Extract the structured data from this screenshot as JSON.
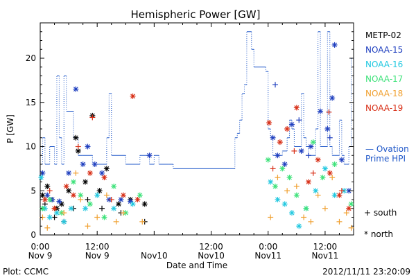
{
  "chart_data": {
    "type": "scatter",
    "title": "Hemispheric Power [GW]",
    "xlabel": "Date and Time",
    "ylabel": "P [GW]",
    "xlim": [
      0,
      66
    ],
    "ylim": [
      0,
      24
    ],
    "grid": false,
    "x_unit": "hours",
    "x_ticks": [
      {
        "x": 0,
        "time": "0:00",
        "date": "Nov 9"
      },
      {
        "x": 12,
        "time": "12:00",
        "date": "Nov 9"
      },
      {
        "x": 24,
        "time": "",
        "date": "Nov10"
      },
      {
        "x": 36,
        "time": "12:00",
        "date": "Nov10"
      },
      {
        "x": 48,
        "time": "0:00",
        "date": "Nov11"
      },
      {
        "x": 60,
        "time": "12:00",
        "date": "Nov11"
      }
    ],
    "y_ticks": [
      0,
      5,
      10,
      15,
      20
    ],
    "legend": {
      "placement": "right",
      "entries": [
        {
          "name": "METP-02",
          "color": "#000000"
        },
        {
          "name": "NOAA-15",
          "color": "#1f3fbf"
        },
        {
          "name": "NOAA-16",
          "color": "#22c8e0"
        },
        {
          "name": "NOAA-17",
          "color": "#3ee27a"
        },
        {
          "name": "NOAA-18",
          "color": "#f0a030"
        },
        {
          "name": "NOAA-19",
          "color": "#d83018"
        }
      ],
      "ovation_label_line1": "— Ovation",
      "ovation_label_line2": "Prime HPI",
      "ovation_color": "#1f57c8",
      "marker_south_label": "+ south",
      "marker_north_label": "* north"
    },
    "ovation_series": [
      [
        0,
        8
      ],
      [
        0.5,
        11
      ],
      [
        1,
        8
      ],
      [
        2,
        10
      ],
      [
        3,
        8
      ],
      [
        3.5,
        18
      ],
      [
        4,
        11
      ],
      [
        4.5,
        8
      ],
      [
        5,
        18
      ],
      [
        5.5,
        14
      ],
      [
        7,
        11
      ],
      [
        8,
        9
      ],
      [
        9,
        9
      ],
      [
        10,
        9
      ],
      [
        11,
        8
      ],
      [
        13,
        8
      ],
      [
        14,
        11
      ],
      [
        14.5,
        16
      ],
      [
        15,
        9
      ],
      [
        17,
        9
      ],
      [
        18,
        8
      ],
      [
        21,
        9
      ],
      [
        23,
        8
      ],
      [
        24,
        9
      ],
      [
        25,
        8
      ],
      [
        27,
        8
      ],
      [
        28,
        7.5
      ],
      [
        40,
        7.5
      ],
      [
        41,
        11
      ],
      [
        41.5,
        11.5
      ],
      [
        42,
        13
      ],
      [
        42.5,
        16
      ],
      [
        43,
        17
      ],
      [
        43.5,
        23
      ],
      [
        44.5,
        21
      ],
      [
        45,
        19
      ],
      [
        47,
        19
      ],
      [
        47.5,
        18.5
      ],
      [
        48,
        12
      ],
      [
        48.5,
        11
      ],
      [
        49,
        9
      ],
      [
        51,
        9.5
      ],
      [
        52,
        11
      ],
      [
        52.5,
        13
      ],
      [
        53,
        12
      ],
      [
        53.5,
        10
      ],
      [
        55,
        16
      ],
      [
        55.5,
        11
      ],
      [
        56,
        10
      ],
      [
        56.5,
        9
      ],
      [
        58,
        12
      ],
      [
        58.5,
        23
      ],
      [
        59,
        10
      ],
      [
        60.5,
        23
      ],
      [
        61,
        10
      ],
      [
        61.5,
        9
      ],
      [
        62,
        9
      ],
      [
        63,
        13
      ],
      [
        63.5,
        9
      ],
      [
        64,
        8
      ],
      [
        64.5,
        8
      ],
      [
        65,
        10
      ],
      [
        65.5,
        20
      ],
      [
        66,
        20
      ]
    ],
    "points": [
      {
        "sat": "METP-02",
        "hem": "north",
        "x": 0.5,
        "y": 4.5
      },
      {
        "sat": "METP-02",
        "hem": "north",
        "x": 1.5,
        "y": 5.5
      },
      {
        "sat": "METP-02",
        "hem": "north",
        "x": 2.5,
        "y": 4
      },
      {
        "sat": "METP-02",
        "hem": "north",
        "x": 3.5,
        "y": 3
      },
      {
        "sat": "METP-02",
        "hem": "north",
        "x": 4.5,
        "y": 3.5
      },
      {
        "sat": "METP-02",
        "hem": "north",
        "x": 6,
        "y": 5
      },
      {
        "sat": "METP-02",
        "hem": "north",
        "x": 7.5,
        "y": 11
      },
      {
        "sat": "METP-02",
        "hem": "north",
        "x": 8,
        "y": 9.5
      },
      {
        "sat": "METP-02",
        "hem": "north",
        "x": 9.5,
        "y": 6
      },
      {
        "sat": "METP-02",
        "hem": "north",
        "x": 11,
        "y": 13.5
      },
      {
        "sat": "METP-02",
        "hem": "north",
        "x": 12.5,
        "y": 5
      },
      {
        "sat": "METP-02",
        "hem": "north",
        "x": 14,
        "y": 7.5
      },
      {
        "sat": "METP-02",
        "hem": "north",
        "x": 16.5,
        "y": 3.5
      },
      {
        "sat": "METP-02",
        "hem": "north",
        "x": 19,
        "y": 4
      },
      {
        "sat": "METP-02",
        "hem": "north",
        "x": 22,
        "y": 3.5
      },
      {
        "sat": "METP-02",
        "hem": "south",
        "x": 1,
        "y": 3.5
      },
      {
        "sat": "METP-02",
        "hem": "south",
        "x": 3,
        "y": 2
      },
      {
        "sat": "METP-02",
        "hem": "south",
        "x": 5,
        "y": 1.5
      },
      {
        "sat": "METP-02",
        "hem": "south",
        "x": 7,
        "y": 3
      },
      {
        "sat": "METP-02",
        "hem": "south",
        "x": 10,
        "y": 4
      },
      {
        "sat": "METP-02",
        "hem": "south",
        "x": 13,
        "y": 3
      },
      {
        "sat": "METP-02",
        "hem": "south",
        "x": 17,
        "y": 2.5
      },
      {
        "sat": "METP-02",
        "hem": "south",
        "x": 22,
        "y": 1.5
      },
      {
        "sat": "NOAA-15",
        "hem": "north",
        "x": 0.5,
        "y": 7
      },
      {
        "sat": "NOAA-15",
        "hem": "north",
        "x": 1.5,
        "y": 4.5
      },
      {
        "sat": "NOAA-15",
        "hem": "north",
        "x": 2.5,
        "y": 4
      },
      {
        "sat": "NOAA-15",
        "hem": "north",
        "x": 4,
        "y": 3.8
      },
      {
        "sat": "NOAA-15",
        "hem": "north",
        "x": 6,
        "y": 7
      },
      {
        "sat": "NOAA-15",
        "hem": "north",
        "x": 7.5,
        "y": 16.5
      },
      {
        "sat": "NOAA-15",
        "hem": "north",
        "x": 9,
        "y": 8
      },
      {
        "sat": "NOAA-15",
        "hem": "north",
        "x": 10,
        "y": 10
      },
      {
        "sat": "NOAA-15",
        "hem": "north",
        "x": 11.5,
        "y": 8
      },
      {
        "sat": "NOAA-15",
        "hem": "north",
        "x": 13,
        "y": 7
      },
      {
        "sat": "NOAA-15",
        "hem": "north",
        "x": 14.5,
        "y": 4
      },
      {
        "sat": "NOAA-15",
        "hem": "north",
        "x": 17,
        "y": 4
      },
      {
        "sat": "NOAA-15",
        "hem": "north",
        "x": 19,
        "y": 3.8
      },
      {
        "sat": "NOAA-15",
        "hem": "north",
        "x": 23,
        "y": 9
      },
      {
        "sat": "NOAA-15",
        "hem": "north",
        "x": 49,
        "y": 11
      },
      {
        "sat": "NOAA-15",
        "hem": "north",
        "x": 50,
        "y": 9
      },
      {
        "sat": "NOAA-15",
        "hem": "north",
        "x": 51.5,
        "y": 8
      },
      {
        "sat": "NOAA-15",
        "hem": "north",
        "x": 53,
        "y": 12.5
      },
      {
        "sat": "NOAA-15",
        "hem": "north",
        "x": 55,
        "y": 9.5
      },
      {
        "sat": "NOAA-15",
        "hem": "north",
        "x": 57,
        "y": 10
      },
      {
        "sat": "NOAA-15",
        "hem": "north",
        "x": 59,
        "y": 14
      },
      {
        "sat": "NOAA-15",
        "hem": "north",
        "x": 60.5,
        "y": 12
      },
      {
        "sat": "NOAA-15",
        "hem": "north",
        "x": 61.5,
        "y": 15.5
      },
      {
        "sat": "NOAA-15",
        "hem": "north",
        "x": 62,
        "y": 21.5
      },
      {
        "sat": "NOAA-15",
        "hem": "north",
        "x": 63.5,
        "y": 8.5
      },
      {
        "sat": "NOAA-15",
        "hem": "north",
        "x": 65,
        "y": 5
      },
      {
        "sat": "NOAA-15",
        "hem": "south",
        "x": 49.5,
        "y": 17
      },
      {
        "sat": "NOAA-15",
        "hem": "south",
        "x": 54.5,
        "y": 13
      },
      {
        "sat": "NOAA-15",
        "hem": "south",
        "x": 56.5,
        "y": 9
      },
      {
        "sat": "NOAA-15",
        "hem": "south",
        "x": 61,
        "y": 11
      },
      {
        "sat": "NOAA-16",
        "hem": "north",
        "x": 0.2,
        "y": 6.5
      },
      {
        "sat": "NOAA-16",
        "hem": "north",
        "x": 1,
        "y": 3
      },
      {
        "sat": "NOAA-16",
        "hem": "north",
        "x": 2,
        "y": 2
      },
      {
        "sat": "NOAA-16",
        "hem": "north",
        "x": 3.5,
        "y": 2.5
      },
      {
        "sat": "NOAA-16",
        "hem": "north",
        "x": 5,
        "y": 1.5
      },
      {
        "sat": "NOAA-16",
        "hem": "north",
        "x": 6.5,
        "y": 3
      },
      {
        "sat": "NOAA-16",
        "hem": "north",
        "x": 9.5,
        "y": 3
      },
      {
        "sat": "NOAA-16",
        "hem": "north",
        "x": 12,
        "y": 4.5
      },
      {
        "sat": "NOAA-16",
        "hem": "north",
        "x": 15.5,
        "y": 3
      },
      {
        "sat": "NOAA-16",
        "hem": "north",
        "x": 19.5,
        "y": 3.5
      },
      {
        "sat": "NOAA-16",
        "hem": "north",
        "x": 48.5,
        "y": 6
      },
      {
        "sat": "NOAA-16",
        "hem": "north",
        "x": 50,
        "y": 4
      },
      {
        "sat": "NOAA-16",
        "hem": "north",
        "x": 51.5,
        "y": 3.5
      },
      {
        "sat": "NOAA-16",
        "hem": "north",
        "x": 53,
        "y": 2.5
      },
      {
        "sat": "NOAA-16",
        "hem": "north",
        "x": 54.5,
        "y": 1
      },
      {
        "sat": "NOAA-16",
        "hem": "north",
        "x": 56,
        "y": 3
      },
      {
        "sat": "NOAA-16",
        "hem": "north",
        "x": 58,
        "y": 5
      },
      {
        "sat": "NOAA-16",
        "hem": "north",
        "x": 60,
        "y": 7.5
      },
      {
        "sat": "NOAA-16",
        "hem": "north",
        "x": 62,
        "y": 4.5
      },
      {
        "sat": "NOAA-16",
        "hem": "north",
        "x": 64,
        "y": 5
      },
      {
        "sat": "NOAA-17",
        "hem": "north",
        "x": 0.5,
        "y": 3
      },
      {
        "sat": "NOAA-17",
        "hem": "north",
        "x": 2,
        "y": 4
      },
      {
        "sat": "NOAA-17",
        "hem": "north",
        "x": 4.5,
        "y": 2.5
      },
      {
        "sat": "NOAA-17",
        "hem": "north",
        "x": 7,
        "y": 6
      },
      {
        "sat": "NOAA-17",
        "hem": "north",
        "x": 8.5,
        "y": 4.5
      },
      {
        "sat": "NOAA-17",
        "hem": "north",
        "x": 10.5,
        "y": 3.5
      },
      {
        "sat": "NOAA-17",
        "hem": "north",
        "x": 13.5,
        "y": 2
      },
      {
        "sat": "NOAA-17",
        "hem": "north",
        "x": 15.5,
        "y": 5.5
      },
      {
        "sat": "NOAA-17",
        "hem": "north",
        "x": 18,
        "y": 2.5
      },
      {
        "sat": "NOAA-17",
        "hem": "north",
        "x": 21,
        "y": 4.5
      },
      {
        "sat": "NOAA-17",
        "hem": "north",
        "x": 48,
        "y": 8.5
      },
      {
        "sat": "NOAA-17",
        "hem": "north",
        "x": 49.5,
        "y": 5.5
      },
      {
        "sat": "NOAA-17",
        "hem": "north",
        "x": 51,
        "y": 7.5
      },
      {
        "sat": "NOAA-17",
        "hem": "north",
        "x": 52.5,
        "y": 6.5
      },
      {
        "sat": "NOAA-17",
        "hem": "north",
        "x": 54,
        "y": 4.5
      },
      {
        "sat": "NOAA-17",
        "hem": "north",
        "x": 56,
        "y": 3
      },
      {
        "sat": "NOAA-17",
        "hem": "north",
        "x": 57.5,
        "y": 10.5
      },
      {
        "sat": "NOAA-17",
        "hem": "north",
        "x": 59.5,
        "y": 6.5
      },
      {
        "sat": "NOAA-17",
        "hem": "north",
        "x": 62,
        "y": 8
      },
      {
        "sat": "NOAA-17",
        "hem": "north",
        "x": 65.5,
        "y": 3.5
      },
      {
        "sat": "NOAA-18",
        "hem": "south",
        "x": 0.5,
        "y": 2
      },
      {
        "sat": "NOAA-18",
        "hem": "south",
        "x": 1.5,
        "y": 0.8
      },
      {
        "sat": "NOAA-18",
        "hem": "south",
        "x": 3,
        "y": 3
      },
      {
        "sat": "NOAA-18",
        "hem": "south",
        "x": 5,
        "y": 2.5
      },
      {
        "sat": "NOAA-18",
        "hem": "south",
        "x": 7.5,
        "y": 7
      },
      {
        "sat": "NOAA-18",
        "hem": "south",
        "x": 8.5,
        "y": 4
      },
      {
        "sat": "NOAA-18",
        "hem": "south",
        "x": 10,
        "y": 1
      },
      {
        "sat": "NOAA-18",
        "hem": "south",
        "x": 12,
        "y": 2
      },
      {
        "sat": "NOAA-18",
        "hem": "south",
        "x": 14,
        "y": 4.5
      },
      {
        "sat": "NOAA-18",
        "hem": "south",
        "x": 16,
        "y": 1.5
      },
      {
        "sat": "NOAA-18",
        "hem": "south",
        "x": 17.5,
        "y": 2.5
      },
      {
        "sat": "NOAA-18",
        "hem": "south",
        "x": 21.5,
        "y": 1.5
      },
      {
        "sat": "NOAA-18",
        "hem": "south",
        "x": 48.5,
        "y": 2
      },
      {
        "sat": "NOAA-18",
        "hem": "south",
        "x": 50,
        "y": 6.5
      },
      {
        "sat": "NOAA-18",
        "hem": "south",
        "x": 52,
        "y": 5
      },
      {
        "sat": "NOAA-18",
        "hem": "south",
        "x": 54,
        "y": 5.5
      },
      {
        "sat": "NOAA-18",
        "hem": "south",
        "x": 55.5,
        "y": 2
      },
      {
        "sat": "NOAA-18",
        "hem": "south",
        "x": 57,
        "y": 1.5
      },
      {
        "sat": "NOAA-18",
        "hem": "south",
        "x": 58.5,
        "y": 4.5
      },
      {
        "sat": "NOAA-18",
        "hem": "south",
        "x": 60,
        "y": 3
      },
      {
        "sat": "NOAA-18",
        "hem": "south",
        "x": 61.5,
        "y": 6.5
      },
      {
        "sat": "NOAA-18",
        "hem": "south",
        "x": 63,
        "y": 1.5
      },
      {
        "sat": "NOAA-18",
        "hem": "south",
        "x": 64.5,
        "y": 2.5
      },
      {
        "sat": "NOAA-18",
        "hem": "south",
        "x": 65.5,
        "y": 0.8
      },
      {
        "sat": "NOAA-19",
        "hem": "north",
        "x": 1,
        "y": 4
      },
      {
        "sat": "NOAA-19",
        "hem": "north",
        "x": 3,
        "y": 3
      },
      {
        "sat": "NOAA-19",
        "hem": "north",
        "x": 5.5,
        "y": 5.5
      },
      {
        "sat": "NOAA-19",
        "hem": "north",
        "x": 7,
        "y": 4.5
      },
      {
        "sat": "NOAA-19",
        "hem": "north",
        "x": 10.5,
        "y": 7
      },
      {
        "sat": "NOAA-19",
        "hem": "north",
        "x": 13.5,
        "y": 6.5
      },
      {
        "sat": "NOAA-19",
        "hem": "north",
        "x": 17.5,
        "y": 4.5
      },
      {
        "sat": "NOAA-19",
        "hem": "north",
        "x": 19.5,
        "y": 15.7
      },
      {
        "sat": "NOAA-19",
        "hem": "north",
        "x": 20.5,
        "y": 4
      },
      {
        "sat": "NOAA-19",
        "hem": "north",
        "x": 48.2,
        "y": 12.7
      },
      {
        "sat": "NOAA-19",
        "hem": "north",
        "x": 50.5,
        "y": 10.5
      },
      {
        "sat": "NOAA-19",
        "hem": "north",
        "x": 52,
        "y": 12
      },
      {
        "sat": "NOAA-19",
        "hem": "north",
        "x": 54,
        "y": 14.4
      },
      {
        "sat": "NOAA-19",
        "hem": "north",
        "x": 56.5,
        "y": 6
      },
      {
        "sat": "NOAA-19",
        "hem": "north",
        "x": 58.5,
        "y": 8.5
      },
      {
        "sat": "NOAA-19",
        "hem": "north",
        "x": 61,
        "y": 7
      },
      {
        "sat": "NOAA-19",
        "hem": "north",
        "x": 63,
        "y": 4.5
      },
      {
        "sat": "NOAA-19",
        "hem": "north",
        "x": 65,
        "y": 3
      },
      {
        "sat": "NOAA-19",
        "hem": "south",
        "x": 2,
        "y": 5
      },
      {
        "sat": "NOAA-19",
        "hem": "south",
        "x": 8,
        "y": 10
      },
      {
        "sat": "NOAA-19",
        "hem": "south",
        "x": 11,
        "y": 13.3
      },
      {
        "sat": "NOAA-19",
        "hem": "south",
        "x": 15,
        "y": 4
      },
      {
        "sat": "NOAA-19",
        "hem": "south",
        "x": 49,
        "y": 7.5
      },
      {
        "sat": "NOAA-19",
        "hem": "south",
        "x": 53.5,
        "y": 9.5
      },
      {
        "sat": "NOAA-19",
        "hem": "south",
        "x": 57.5,
        "y": 7
      },
      {
        "sat": "NOAA-19",
        "hem": "south",
        "x": 60.8,
        "y": 13.9
      },
      {
        "sat": "NOAA-19",
        "hem": "south",
        "x": 63.5,
        "y": 5
      }
    ]
  },
  "footer": {
    "plot_credit": "Plot: CCMC",
    "timestamp": "2012/11/11 23:20:09"
  }
}
